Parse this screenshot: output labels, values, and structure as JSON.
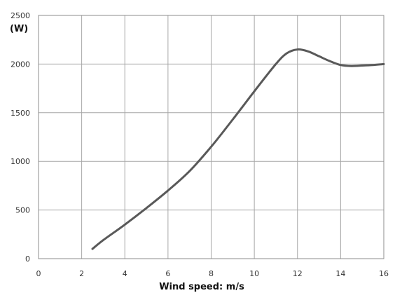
{
  "chart_data": {
    "type": "line",
    "title": "",
    "xlabel": "Wind speed: m/s",
    "ylabel": "(W)",
    "xlim": [
      0,
      16
    ],
    "ylim": [
      0,
      2500
    ],
    "x_ticks": [
      "0",
      "2",
      "4",
      "6",
      "8",
      "10",
      "12",
      "14",
      "16"
    ],
    "y_ticks": [
      "0",
      "500",
      "1000",
      "1500",
      "2000",
      "2500"
    ],
    "grid": true,
    "legend": "none",
    "line_color": "#595959",
    "series": [
      {
        "x": [
          2.5,
          3,
          4,
          5,
          6,
          7,
          8,
          9,
          10,
          11,
          11.5,
          12,
          12.5,
          13,
          13.5,
          14,
          14.5,
          15,
          15.5,
          16
        ],
        "y": [
          100,
          190,
          350,
          520,
          700,
          900,
          1150,
          1430,
          1720,
          2000,
          2110,
          2150,
          2130,
          2080,
          2030,
          1990,
          1980,
          1985,
          1990,
          2000
        ]
      }
    ]
  }
}
